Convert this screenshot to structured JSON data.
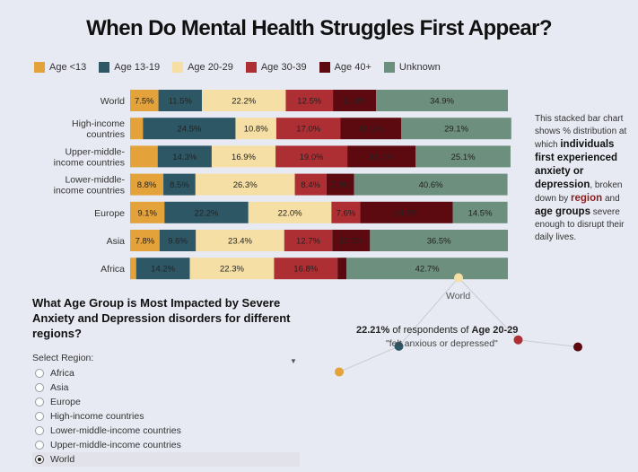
{
  "title": "When Do Mental Health Struggles First Appear?",
  "chart_data": {
    "type": "bar",
    "orientation": "horizontal",
    "stacked": true,
    "title": "When Do Mental Health Struggles First Appear?",
    "categories": [
      "World",
      "High-income countries",
      "Upper-middle-income countries",
      "Lower-middle-income countries",
      "Europe",
      "Asia",
      "Africa"
    ],
    "category_lines": [
      [
        "World"
      ],
      [
        "High-income",
        "countries"
      ],
      [
        "Upper-middle-",
        "income countries"
      ],
      [
        "Lower-middle-",
        "income countries"
      ],
      [
        "Europe"
      ],
      [
        "Asia"
      ],
      [
        "Africa"
      ]
    ],
    "series": [
      {
        "name": "Age <13",
        "color": "#e3a23a",
        "values": [
          7.5,
          3.4,
          7.3,
          8.8,
          9.1,
          7.8,
          1.6
        ]
      },
      {
        "name": "Age 13-19",
        "color": "#2e5766",
        "values": [
          11.5,
          24.5,
          14.3,
          8.5,
          22.2,
          9.6,
          14.2
        ]
      },
      {
        "name": "Age 20-29",
        "color": "#f6dfa4",
        "values": [
          22.2,
          10.8,
          16.9,
          26.3,
          22.0,
          23.4,
          22.3
        ]
      },
      {
        "name": "Age 30-39",
        "color": "#ad2f33",
        "values": [
          12.5,
          17.0,
          19.0,
          8.4,
          7.6,
          12.7,
          16.8
        ]
      },
      {
        "name": "Age 40+",
        "color": "#5c0a10",
        "values": [
          11.4,
          16.1,
          18.1,
          7.3,
          24.5,
          10.0,
          2.4
        ]
      },
      {
        "name": "Unknown",
        "color": "#6d8f7d",
        "values": [
          34.9,
          29.1,
          25.1,
          40.6,
          14.5,
          36.5,
          42.7
        ]
      }
    ],
    "value_labels": [
      [
        "7.5%",
        "11.5%",
        "22.2%",
        "12.5%",
        "11.4%",
        "34.9%"
      ],
      [
        "",
        "24.5%",
        "10.8%",
        "17.0%",
        "16.1%",
        "29.1%"
      ],
      [
        "",
        "14.3%",
        "16.9%",
        "19.0%",
        "18.1%",
        "25.1%"
      ],
      [
        "8.8%",
        "8.5%",
        "26.3%",
        "8.4%",
        "7.3%",
        "40.6%"
      ],
      [
        "9.1%",
        "22.2%",
        "22.0%",
        "7.6%",
        "24.5%",
        "14.5%"
      ],
      [
        "7.8%",
        "9.6%",
        "23.4%",
        "12.7%",
        "10.0%",
        "36.5%"
      ],
      [
        "",
        "14.2%",
        "22.3%",
        "16.8%",
        "",
        "42.7%"
      ]
    ],
    "xlim": [
      0,
      100
    ],
    "xlabel": "",
    "ylabel": "",
    "legend": "top-left",
    "grid": false
  },
  "note": {
    "p1": "This stacked bar chart shows % distribution at which ",
    "b1": "individuals first experienced anxiety or depression",
    "p2": ", broken down by ",
    "hl": "region",
    "p3": " and ",
    "b2": "age groups",
    "p4": " severe enough to disrupt their daily lives."
  },
  "question": "What Age Group is Most Impacted by Severe Anxiety and Depression disorders for different regions?",
  "select": {
    "label": "Select Region:",
    "arrow": "▼",
    "options": [
      "Africa",
      "Asia",
      "Europe",
      "High-income countries",
      "Lower-middle-income countries",
      "Upper-middle-income countries",
      "World"
    ],
    "selected": "World"
  },
  "detail": {
    "region": "World",
    "percent": "22.21%",
    "text_mid": " of respondents of ",
    "age": "Age 20-29",
    "quote": "\"felt anxious or depressed\"",
    "points": [
      {
        "age": "Age <13",
        "color": "#e3a23a",
        "value": 7.5
      },
      {
        "age": "Age 13-19",
        "color": "#2e5766",
        "value": 11.5
      },
      {
        "age": "Age 20-29",
        "color": "#f6dfa4",
        "value": 22.2
      },
      {
        "age": "Age 30-39",
        "color": "#ad2f33",
        "value": 12.5
      },
      {
        "age": "Age 40+",
        "color": "#5c0a10",
        "value": 11.4
      }
    ]
  }
}
